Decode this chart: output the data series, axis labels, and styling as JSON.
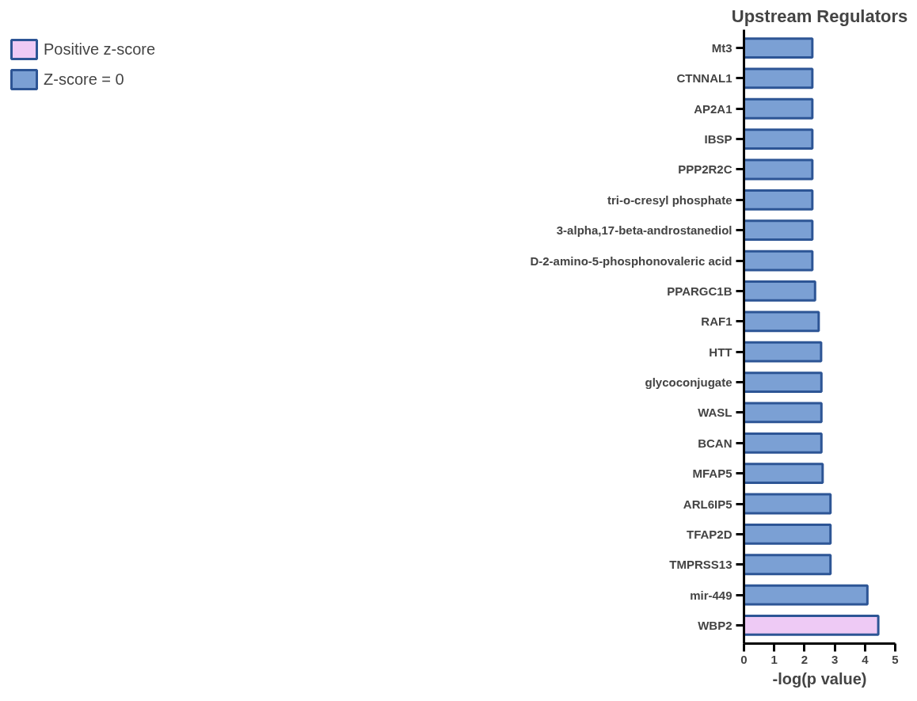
{
  "chart_data": {
    "type": "bar",
    "orientation": "horizontal",
    "title": "Upstream Regulators",
    "xlabel": "-log(p value)",
    "categories": [
      "Mt3",
      "CTNNAL1",
      "AP2A1",
      "IBSP",
      "PPP2R2C",
      "tri-o-cresyl phosphate",
      "3-alpha,17-beta-androstanediol",
      "D-2-amino-5-phosphonovaleric acid",
      "PPARGC1B",
      "RAF1",
      "HTT",
      "glycoconjugate",
      "WASL",
      "BCAN",
      "MFAP5",
      "ARL6IP5",
      "TFAP2D",
      "TMPRSS13",
      "mir-449",
      "WBP2"
    ],
    "series": [
      {
        "name": "Positive z-score",
        "color": "#eecaf5",
        "values": [
          null,
          null,
          null,
          null,
          null,
          null,
          null,
          null,
          null,
          null,
          null,
          null,
          null,
          null,
          null,
          null,
          null,
          null,
          null,
          4.44
        ]
      },
      {
        "name": "Z-score = 0",
        "color": "#7ba0d4",
        "values": [
          2.26,
          2.26,
          2.26,
          2.26,
          2.26,
          2.26,
          2.26,
          2.26,
          2.35,
          2.47,
          2.55,
          2.56,
          2.56,
          2.56,
          2.6,
          2.86,
          2.86,
          2.86,
          4.08,
          null
        ]
      }
    ],
    "xlim": [
      0,
      5
    ],
    "xticks": [
      0,
      1,
      2,
      3,
      4,
      5
    ],
    "grid": false,
    "legend": "top left"
  }
}
